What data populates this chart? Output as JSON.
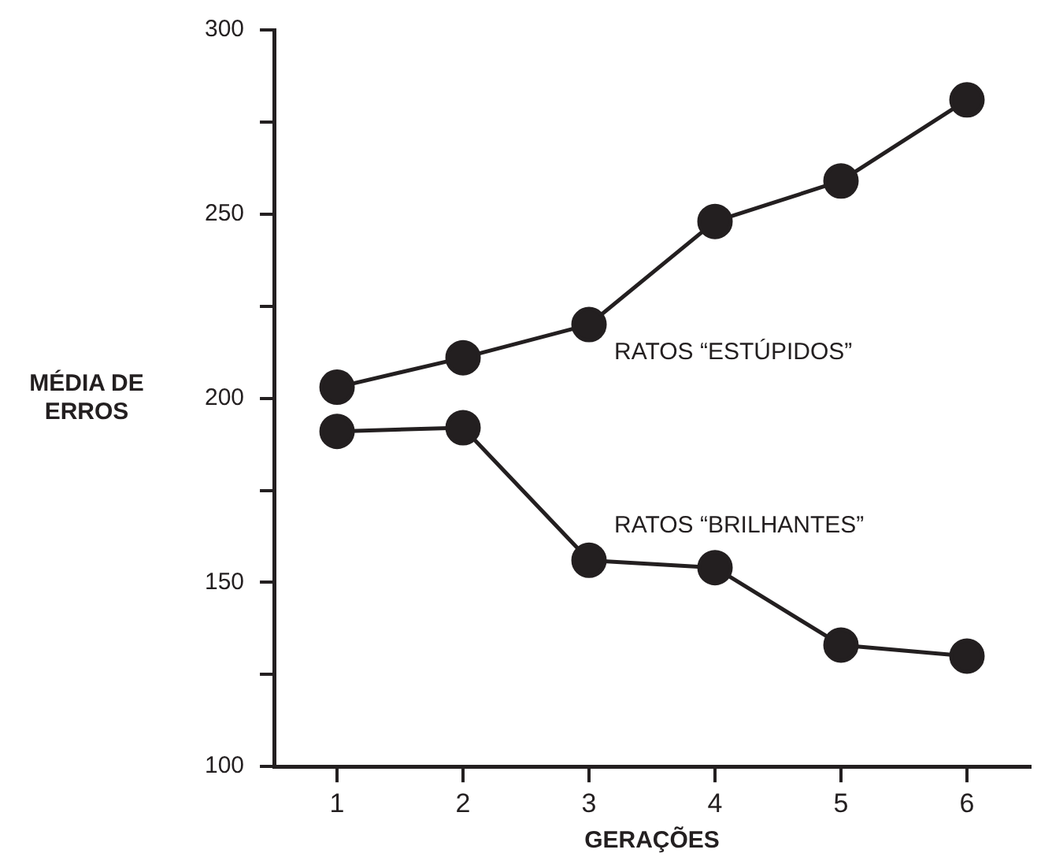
{
  "chart_data": {
    "type": "line",
    "xlabel": "GERAÇÕES",
    "ylabel": "MÉDIA DE\nERROS",
    "categories": [
      "1",
      "2",
      "3",
      "4",
      "5",
      "6"
    ],
    "series": [
      {
        "name": "RATOS “ESTÚPIDOS”",
        "color": "#231f20",
        "values": [
          203,
          211,
          220,
          248,
          259,
          281
        ]
      },
      {
        "name": "RATOS “BRILHANTES”",
        "color": "#231f20",
        "values": [
          191,
          192,
          156,
          154,
          133,
          130
        ]
      }
    ],
    "ylim": [
      100,
      300
    ],
    "yticks": [
      100,
      {
        "value": 125,
        "label": null
      },
      150,
      {
        "value": 175,
        "label": null
      },
      200,
      {
        "value": 225,
        "label": null
      },
      250,
      {
        "value": 275,
        "label": null
      },
      300
    ],
    "marker": "circle",
    "line_style": "solid",
    "legend": false
  }
}
